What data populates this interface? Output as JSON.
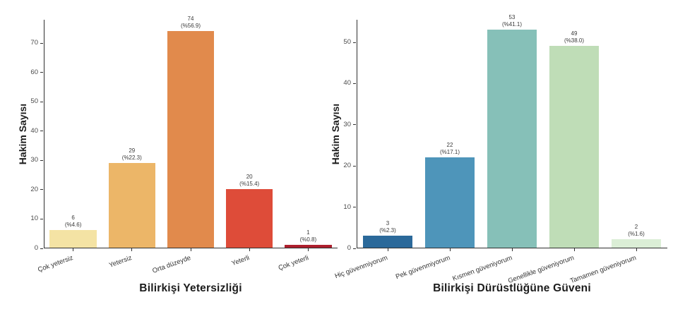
{
  "figure": {
    "background": "#ffffff",
    "text_color": "#1c1c1c"
  },
  "chart_data": [
    {
      "type": "bar",
      "title": "Bilirkişi Yetersizliği",
      "ylabel": "Hakim Sayısı",
      "xlabel": "",
      "categories": [
        "Çok yetersiz",
        "Yetersiz",
        "Orta düzeyde",
        "Yeterli",
        "Çok yeterli"
      ],
      "values": [
        6,
        29,
        74,
        20,
        1
      ],
      "count_labels": [
        "6",
        "29",
        "74",
        "20",
        "1"
      ],
      "percent_labels": [
        "(%4.6)",
        "(%22.3)",
        "(%56.9)",
        "(%15.4)",
        "(%0.8)"
      ],
      "bar_colors": [
        "#f4e3a4",
        "#ecb668",
        "#e18a4c",
        "#de4c39",
        "#ad1f2d"
      ],
      "yticks": [
        0,
        10,
        20,
        30,
        40,
        50,
        60,
        70
      ],
      "ylim": [
        0,
        78
      ],
      "grid": false,
      "legend_position": "none"
    },
    {
      "type": "bar",
      "title": "Bilirkişi Dürüstlüğüne Güveni",
      "ylabel": "Hakim Sayısı",
      "xlabel": "",
      "categories": [
        "Hiç güvenmiyorum",
        "Pek güvenmiyorum",
        "Kısmen güveniyorum",
        "Genellikle güveniyorum",
        "Tamamen güveniyorum"
      ],
      "values": [
        3,
        22,
        53,
        49,
        2
      ],
      "count_labels": [
        "3",
        "22",
        "53",
        "49",
        "2"
      ],
      "percent_labels": [
        "(%2.3)",
        "(%17.1)",
        "(%41.1)",
        "(%38.0)",
        "(%1.6)"
      ],
      "bar_colors": [
        "#2b699a",
        "#4e95ba",
        "#86c0b8",
        "#bfddb7",
        "#dbeed6"
      ],
      "yticks": [
        0,
        10,
        20,
        30,
        40,
        50
      ],
      "ylim": [
        0,
        55.5
      ],
      "grid": false,
      "legend_position": "none"
    }
  ]
}
